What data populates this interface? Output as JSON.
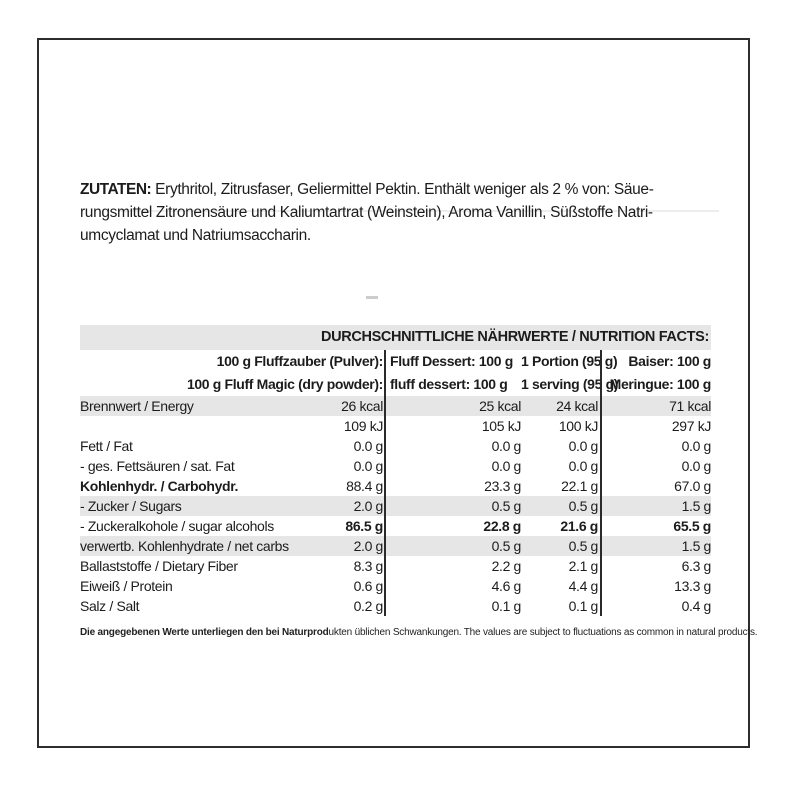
{
  "page": {
    "background": "#ffffff",
    "frame_border_color": "#2d2d2d",
    "shade_color": "#e6e6e6",
    "text_color": "#1c1c1c"
  },
  "ingredients": {
    "label": "ZUTATEN:",
    "line1_rest": " Erythritol, Zitrusfaser, Geliermittel Pektin. Enthält weniger als 2 % von: Säue-",
    "line2": "rungsmittel Zitronensäure und Kaliumtartrat (Weinstein), Aroma Vanillin, Süßstoffe Natri-",
    "line3": "umcyclamat und Natriumsaccharin."
  },
  "table": {
    "title": "DURCHSCHNITTLICHE NÄHRWERTE / NUTRITION FACTS:",
    "column_headers": {
      "col1": [
        "100 g Fluffzauber (Pulver):",
        "100 g Fluff Magic (dry powder):"
      ],
      "col2": [
        "Fluff Dessert: 100 g",
        "fluff dessert: 100 g"
      ],
      "col3": [
        "1 Portion (95 g)",
        "1 serving (95 g)"
      ],
      "col4": [
        "Baiser: 100 g",
        "Meringue: 100 g"
      ]
    },
    "rows": [
      {
        "label": "Brennwert / Energy",
        "v1": "26 kcal",
        "v2": "25 kcal",
        "v3": "24 kcal",
        "v4": "71 kcal",
        "shade": true,
        "bold_label": false,
        "bold_values": false
      },
      {
        "label": "",
        "v1": "109 kJ",
        "v2": "105 kJ",
        "v3": "100 kJ",
        "v4": "297 kJ",
        "shade": false,
        "bold_label": false,
        "bold_values": false
      },
      {
        "label": "Fett / Fat",
        "v1": "0.0 g",
        "v2": "0.0 g",
        "v3": "0.0 g",
        "v4": "0.0 g",
        "shade": false,
        "bold_label": false,
        "bold_values": false
      },
      {
        "label": "- ges. Fettsäuren / sat. Fat",
        "v1": "0.0 g",
        "v2": "0.0 g",
        "v3": "0.0 g",
        "v4": "0.0 g",
        "shade": false,
        "bold_label": false,
        "bold_values": false
      },
      {
        "label": "Kohlenhydr. / Carbohydr.",
        "v1": "88.4 g",
        "v2": "23.3 g",
        "v3": "22.1 g",
        "v4": "67.0 g",
        "shade": false,
        "bold_label": true,
        "bold_values": false
      },
      {
        "label": "- Zucker / Sugars",
        "v1": "2.0 g",
        "v2": "0.5 g",
        "v3": "0.5 g",
        "v4": "1.5 g",
        "shade": true,
        "bold_label": false,
        "bold_values": false
      },
      {
        "label": "- Zuckeralkohole / sugar alcohols",
        "v1": "86.5 g",
        "v2": "22.8 g",
        "v3": "21.6 g",
        "v4": "65.5 g",
        "shade": false,
        "bold_label": false,
        "bold_values": true
      },
      {
        "label": "verwertb. Kohlenhydrate / net carbs",
        "v1": "2.0 g",
        "v2": "0.5 g",
        "v3": "0.5 g",
        "v4": "1.5 g",
        "shade": true,
        "bold_label": false,
        "bold_values": false
      },
      {
        "label": "Ballaststoffe / Dietary Fiber",
        "v1": "8.3 g",
        "v2": "2.2 g",
        "v3": "2.1 g",
        "v4": "6.3 g",
        "shade": false,
        "bold_label": false,
        "bold_values": false
      },
      {
        "label": "Eiweiß / Protein",
        "v1": "0.6 g",
        "v2": "4.6 g",
        "v3": "4.4 g",
        "v4": "13.3 g",
        "shade": false,
        "bold_label": false,
        "bold_values": false
      },
      {
        "label": "Salz / Salt",
        "v1": "0.2 g",
        "v2": "0.1 g",
        "v3": "0.1 g",
        "v4": "0.4 g",
        "shade": false,
        "bold_label": false,
        "bold_values": false
      }
    ],
    "footnote": {
      "bold_part": "Die angegebenen Werte unterliegen den bei Naturprod",
      "regular_part": "ukten üblichen Schwankungen. The values are subject to fluctuations as common in natural products."
    }
  }
}
